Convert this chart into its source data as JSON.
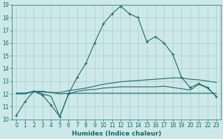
{
  "xlabel": "Humidex (Indice chaleur)",
  "xlim": [
    -0.5,
    23.5
  ],
  "ylim": [
    10,
    19
  ],
  "yticks": [
    10,
    11,
    12,
    13,
    14,
    15,
    16,
    17,
    18,
    19
  ],
  "xticks": [
    0,
    1,
    2,
    3,
    4,
    5,
    6,
    7,
    8,
    9,
    10,
    11,
    12,
    13,
    14,
    15,
    16,
    17,
    18,
    19,
    20,
    21,
    22,
    23
  ],
  "bg_color": "#cce8e8",
  "grid_color": "#aacccc",
  "line_color": "#1a6868",
  "line1_x": [
    0,
    1,
    2,
    3,
    4,
    5,
    6,
    7,
    8,
    9,
    10,
    11,
    12,
    13,
    14,
    15,
    16,
    17,
    18,
    19,
    20,
    21,
    22,
    23
  ],
  "line1_y": [
    10.3,
    11.4,
    12.2,
    11.9,
    11.1,
    10.2,
    12.0,
    13.3,
    14.4,
    16.0,
    17.5,
    18.3,
    18.9,
    18.3,
    18.0,
    16.1,
    16.5,
    16.0,
    15.1,
    13.3,
    12.5,
    12.8,
    12.5,
    11.8
  ],
  "line2_x": [
    0,
    1,
    2,
    3,
    4,
    5,
    6,
    7,
    8,
    9,
    10,
    11,
    12,
    13,
    14,
    15,
    16,
    17,
    18,
    19,
    20,
    21,
    22,
    23
  ],
  "line2_y": [
    12.05,
    12.05,
    12.2,
    12.2,
    12.1,
    12.1,
    12.25,
    12.35,
    12.45,
    12.6,
    12.75,
    12.85,
    12.95,
    13.0,
    13.05,
    13.1,
    13.15,
    13.2,
    13.25,
    13.25,
    13.15,
    13.1,
    13.0,
    12.9
  ],
  "line3_x": [
    0,
    1,
    2,
    3,
    4,
    5,
    6,
    7,
    8,
    9,
    10,
    11,
    12,
    13,
    14,
    15,
    16,
    17,
    18,
    19,
    20,
    21,
    22,
    23
  ],
  "line3_y": [
    12.05,
    12.05,
    12.15,
    12.15,
    12.1,
    12.0,
    12.05,
    12.05,
    12.05,
    12.05,
    12.05,
    12.05,
    12.05,
    12.05,
    12.05,
    12.05,
    12.05,
    12.05,
    12.05,
    12.05,
    12.05,
    12.05,
    12.05,
    12.05
  ],
  "line4_x": [
    0,
    1,
    2,
    3,
    4,
    5,
    6,
    7,
    8,
    9,
    10,
    11,
    12,
    13,
    14,
    15,
    16,
    17,
    18,
    19,
    20,
    21,
    22,
    23
  ],
  "line4_y": [
    12.0,
    12.0,
    12.2,
    12.0,
    11.8,
    10.2,
    12.0,
    12.2,
    12.3,
    12.35,
    12.45,
    12.5,
    12.55,
    12.55,
    12.55,
    12.55,
    12.55,
    12.6,
    12.5,
    12.4,
    12.3,
    12.75,
    12.45,
    11.8
  ]
}
